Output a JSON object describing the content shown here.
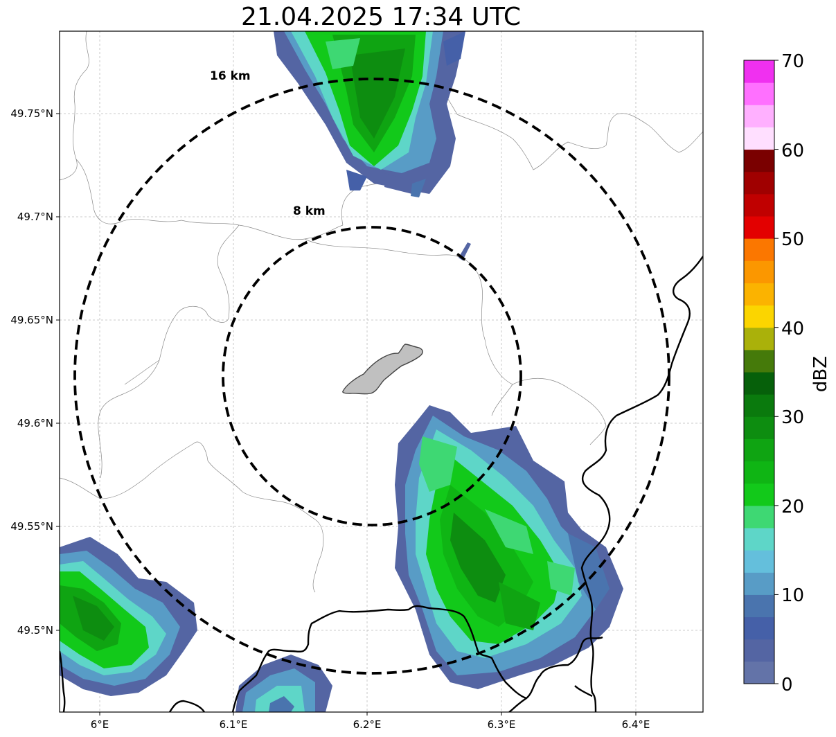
{
  "title": "21.04.2025 17:34 UTC",
  "lon_ticks": [
    {
      "value": 6.0,
      "label": "6°E"
    },
    {
      "value": 6.1,
      "label": "6.1°E"
    },
    {
      "value": 6.2,
      "label": "6.2°E"
    },
    {
      "value": 6.3,
      "label": "6.3°E"
    },
    {
      "value": 6.4,
      "label": "6.4°E"
    }
  ],
  "lat_ticks": [
    {
      "value": 49.75,
      "label": "49.75°N"
    },
    {
      "value": 49.7,
      "label": "49.7°N"
    },
    {
      "value": 49.65,
      "label": "49.65°N"
    },
    {
      "value": 49.6,
      "label": "49.6°N"
    },
    {
      "value": 49.55,
      "label": "49.55°N"
    },
    {
      "value": 49.5,
      "label": "49.5°N"
    }
  ],
  "range_rings": [
    {
      "label": "8 km",
      "radius_km": 8
    },
    {
      "label": "16 km",
      "radius_km": 16
    }
  ],
  "colorbar": {
    "label": "dBZ",
    "min": 0,
    "max": 70,
    "ticks": [
      "0",
      "10",
      "20",
      "30",
      "40",
      "50",
      "60",
      "70"
    ],
    "colors": [
      "#6373a8",
      "#5465a3",
      "#4560a8",
      "#4a74ae",
      "#589cc6",
      "#64bfdc",
      "#5ed6c8",
      "#3ed873",
      "#12c91a",
      "#0fb514",
      "#0fa412",
      "#0d8d10",
      "#0a7a0d",
      "#06600a",
      "#457a0a",
      "#aab10a",
      "#fbd500",
      "#fbb300",
      "#fb9700",
      "#fb7700",
      "#e30000",
      "#c00000",
      "#a00000",
      "#7a0000",
      "#ffdfff",
      "#ffb0ff",
      "#ff70ff",
      "#f030f0"
    ]
  }
}
